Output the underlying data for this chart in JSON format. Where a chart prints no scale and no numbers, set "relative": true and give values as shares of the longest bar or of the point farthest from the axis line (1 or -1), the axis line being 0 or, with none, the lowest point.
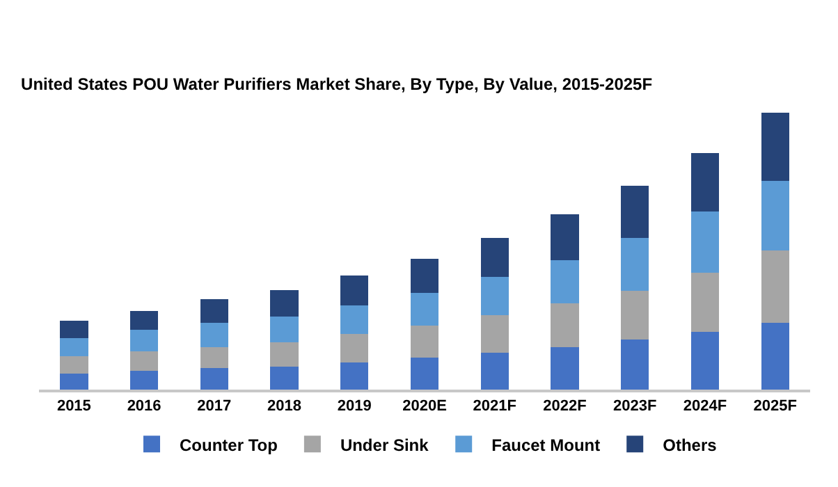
{
  "chart_data": {
    "type": "bar",
    "title": "United States POU Water Purifiers Market Share, By Type, By Value, 2015-2025F",
    "categories": [
      "2015",
      "2016",
      "2017",
      "2018",
      "2019",
      "2020E",
      "2021F",
      "2022F",
      "2023F",
      "2024F",
      "2025F"
    ],
    "stacked": true,
    "relative": true,
    "legend": "bottom",
    "series": [
      {
        "name": "Counter Top",
        "color": "#4472c4",
        "values": [
          0.059,
          0.068,
          0.077,
          0.084,
          0.099,
          0.116,
          0.132,
          0.154,
          0.18,
          0.209,
          0.24
        ]
      },
      {
        "name": "Under Sink",
        "color": "#a5a5a5",
        "values": [
          0.062,
          0.07,
          0.077,
          0.086,
          0.103,
          0.116,
          0.138,
          0.158,
          0.178,
          0.213,
          0.262
        ]
      },
      {
        "name": "Faucet Mount",
        "color": "#5b9bd5",
        "values": [
          0.066,
          0.077,
          0.088,
          0.095,
          0.103,
          0.116,
          0.136,
          0.156,
          0.189,
          0.22,
          0.251
        ]
      },
      {
        "name": "Others",
        "color": "#264478",
        "values": [
          0.062,
          0.07,
          0.084,
          0.095,
          0.108,
          0.125,
          0.141,
          0.165,
          0.189,
          0.213,
          0.247
        ]
      }
    ]
  }
}
